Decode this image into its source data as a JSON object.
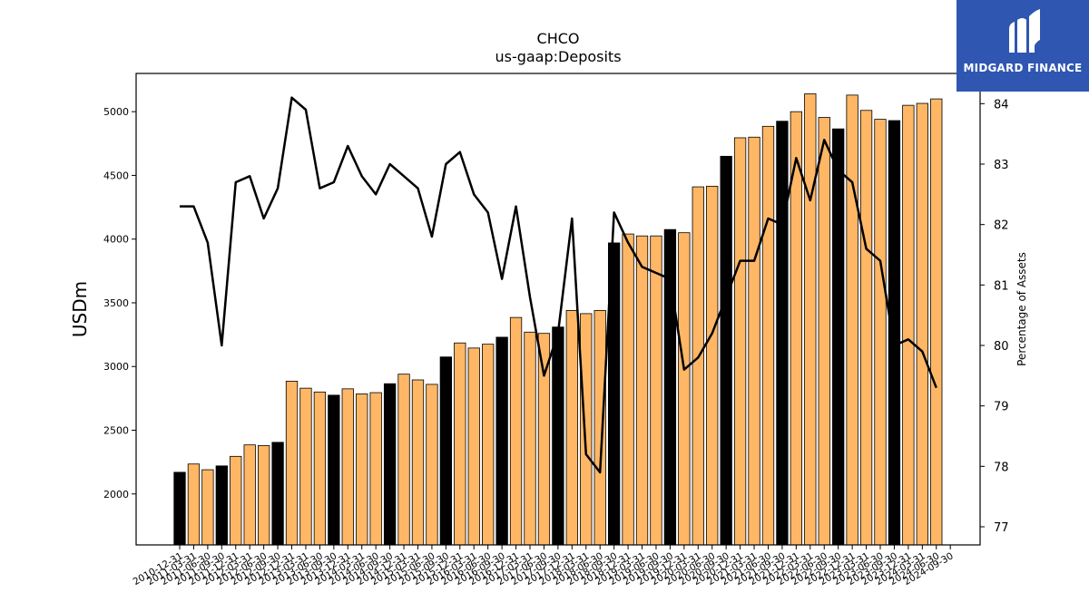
{
  "chart_data": {
    "type": "bar+line",
    "title": "CHCO",
    "subtitle": "us-gaap:Deposits",
    "ylabel": "USDm",
    "ylabel_right": "Percentage of Assets",
    "ylim": [
      1600,
      5300
    ],
    "ylim_right": [
      76.7,
      84.5
    ],
    "yticks": [
      2000,
      2500,
      3000,
      3500,
      4000,
      4500,
      5000
    ],
    "yticks_right": [
      77,
      78,
      79,
      80,
      81,
      82,
      83,
      84
    ],
    "categories": [
      "2010-12-31",
      "2011-03-31",
      "2011-06-30",
      "2011-09-30",
      "2011-12-31",
      "2012-03-31",
      "2012-06-30",
      "2012-09-30",
      "2012-12-31",
      "2013-03-31",
      "2013-06-30",
      "2013-09-30",
      "2013-12-31",
      "2014-03-31",
      "2014-06-30",
      "2014-09-30",
      "2014-12-31",
      "2015-03-31",
      "2015-06-30",
      "2015-09-30",
      "2015-12-31",
      "2016-03-31",
      "2016-06-30",
      "2016-09-30",
      "2016-12-31",
      "2017-03-31",
      "2017-06-30",
      "2017-09-30",
      "2017-12-31",
      "2018-03-31",
      "2018-06-30",
      "2018-09-30",
      "2018-12-31",
      "2019-03-31",
      "2019-06-30",
      "2019-09-30",
      "2019-12-31",
      "2020-03-31",
      "2020-06-30",
      "2020-09-30",
      "2020-12-31",
      "2021-03-31",
      "2021-06-30",
      "2021-09-30",
      "2021-12-31",
      "2022-03-31",
      "2022-06-30",
      "2022-09-30",
      "2022-12-31",
      "2023-03-31",
      "2023-06-30",
      "2023-09-30",
      "2023-12-31",
      "2024-03-31",
      "2024-06-30",
      "2024-09-30"
    ],
    "deposits": [
      2170,
      2235,
      2190,
      2220,
      2295,
      2385,
      2380,
      2405,
      2885,
      2830,
      2800,
      2775,
      2825,
      2785,
      2795,
      2865,
      2940,
      2895,
      2860,
      3075,
      3185,
      3145,
      3175,
      3230,
      3385,
      3270,
      3260,
      3310,
      3440,
      3415,
      3440,
      3970,
      4040,
      4025,
      4025,
      4075,
      4050,
      4410,
      4415,
      4650,
      4795,
      4800,
      4885,
      4925,
      5000,
      5140,
      4955,
      4865,
      5130,
      5010,
      4940,
      4930,
      5050,
      5065,
      5100,
      null
    ],
    "pct_of_assets": [
      82.3,
      82.3,
      81.7,
      80.0,
      82.7,
      82.8,
      82.1,
      82.6,
      84.1,
      83.9,
      82.6,
      82.7,
      83.3,
      82.8,
      82.5,
      83.0,
      82.8,
      82.6,
      81.8,
      83.0,
      83.2,
      82.5,
      82.2,
      81.1,
      82.3,
      80.8,
      79.5,
      80.2,
      82.1,
      78.2,
      77.9,
      82.2,
      81.7,
      81.3,
      81.2,
      81.1,
      79.6,
      79.8,
      80.2,
      80.8,
      81.4,
      81.4,
      82.1,
      82.0,
      83.1,
      82.4,
      83.4,
      82.9,
      82.7,
      81.6,
      81.4,
      80.0,
      80.1,
      79.9,
      79.3
    ],
    "bar_color_normal": "#ffb766",
    "bar_color_highlight": "#000000",
    "highlight_indices": [
      0,
      3,
      7,
      11,
      15,
      19,
      23,
      27,
      31,
      35,
      39,
      43,
      47,
      51
    ],
    "line_color": "#000000",
    "grid": false,
    "legend": "none"
  },
  "brand": {
    "name": "MIDGARD FINANCE",
    "background": "#2f56b0"
  }
}
